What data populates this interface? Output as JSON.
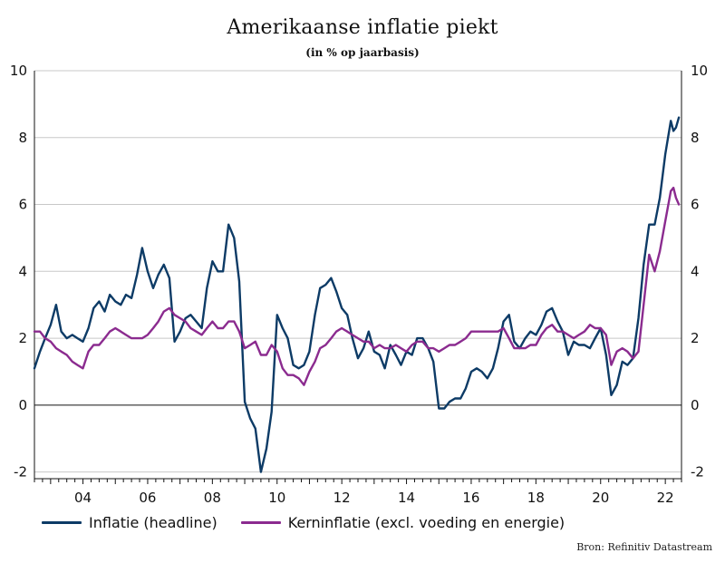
{
  "chart_data": {
    "type": "line",
    "title": "Amerikaanse inflatie piekt",
    "subtitle": "(in % op jaarbasis)",
    "source": "Bron: Refinitiv Datastream",
    "y_ticks": [
      -2,
      0,
      2,
      4,
      6,
      8,
      10
    ],
    "y_tick_labels": [
      "-2",
      "0",
      "2",
      "4",
      "6",
      "8",
      "10"
    ],
    "ylim": [
      -2.2,
      10
    ],
    "x_range": [
      2002.5,
      2022.5
    ],
    "x_tick_labels": [
      {
        "x": 2004,
        "label": "04"
      },
      {
        "x": 2006,
        "label": "06"
      },
      {
        "x": 2008,
        "label": "08"
      },
      {
        "x": 2010,
        "label": "10"
      },
      {
        "x": 2012,
        "label": "12"
      },
      {
        "x": 2014,
        "label": "14"
      },
      {
        "x": 2016,
        "label": "16"
      },
      {
        "x": 2018,
        "label": "18"
      },
      {
        "x": 2020,
        "label": "20"
      },
      {
        "x": 2022,
        "label": "22"
      }
    ],
    "grid": true,
    "zero_line": true,
    "dual_axis": true,
    "legend_position": "bottom",
    "series": [
      {
        "name": "Inflatie (headline)",
        "color": "#0d3b66",
        "points": [
          [
            2002.5,
            1.1
          ],
          [
            2002.67,
            1.6
          ],
          [
            2002.83,
            2.0
          ],
          [
            2003.0,
            2.4
          ],
          [
            2003.17,
            3.0
          ],
          [
            2003.33,
            2.2
          ],
          [
            2003.5,
            2.0
          ],
          [
            2003.67,
            2.1
          ],
          [
            2003.83,
            2.0
          ],
          [
            2004.0,
            1.9
          ],
          [
            2004.17,
            2.3
          ],
          [
            2004.33,
            2.9
          ],
          [
            2004.5,
            3.1
          ],
          [
            2004.67,
            2.8
          ],
          [
            2004.83,
            3.3
          ],
          [
            2005.0,
            3.1
          ],
          [
            2005.17,
            3.0
          ],
          [
            2005.33,
            3.3
          ],
          [
            2005.5,
            3.2
          ],
          [
            2005.67,
            3.9
          ],
          [
            2005.83,
            4.7
          ],
          [
            2006.0,
            4.0
          ],
          [
            2006.17,
            3.5
          ],
          [
            2006.33,
            3.9
          ],
          [
            2006.5,
            4.2
          ],
          [
            2006.67,
            3.8
          ],
          [
            2006.83,
            1.9
          ],
          [
            2007.0,
            2.2
          ],
          [
            2007.17,
            2.6
          ],
          [
            2007.33,
            2.7
          ],
          [
            2007.5,
            2.5
          ],
          [
            2007.67,
            2.3
          ],
          [
            2007.83,
            3.5
          ],
          [
            2008.0,
            4.3
          ],
          [
            2008.17,
            4.0
          ],
          [
            2008.33,
            4.0
          ],
          [
            2008.5,
            5.4
          ],
          [
            2008.67,
            5.0
          ],
          [
            2008.83,
            3.7
          ],
          [
            2009.0,
            0.1
          ],
          [
            2009.17,
            -0.4
          ],
          [
            2009.33,
            -0.7
          ],
          [
            2009.5,
            -2.0
          ],
          [
            2009.67,
            -1.3
          ],
          [
            2009.83,
            -0.2
          ],
          [
            2010.0,
            2.7
          ],
          [
            2010.17,
            2.3
          ],
          [
            2010.33,
            2.0
          ],
          [
            2010.5,
            1.2
          ],
          [
            2010.67,
            1.1
          ],
          [
            2010.83,
            1.2
          ],
          [
            2011.0,
            1.6
          ],
          [
            2011.17,
            2.7
          ],
          [
            2011.33,
            3.5
          ],
          [
            2011.5,
            3.6
          ],
          [
            2011.67,
            3.8
          ],
          [
            2011.83,
            3.4
          ],
          [
            2012.0,
            2.9
          ],
          [
            2012.17,
            2.7
          ],
          [
            2012.33,
            2.0
          ],
          [
            2012.5,
            1.4
          ],
          [
            2012.67,
            1.7
          ],
          [
            2012.83,
            2.2
          ],
          [
            2013.0,
            1.6
          ],
          [
            2013.17,
            1.5
          ],
          [
            2013.33,
            1.1
          ],
          [
            2013.5,
            1.8
          ],
          [
            2013.67,
            1.5
          ],
          [
            2013.83,
            1.2
          ],
          [
            2014.0,
            1.6
          ],
          [
            2014.17,
            1.5
          ],
          [
            2014.33,
            2.0
          ],
          [
            2014.5,
            2.0
          ],
          [
            2014.67,
            1.7
          ],
          [
            2014.83,
            1.3
          ],
          [
            2015.0,
            -0.1
          ],
          [
            2015.17,
            -0.1
          ],
          [
            2015.33,
            0.1
          ],
          [
            2015.5,
            0.2
          ],
          [
            2015.67,
            0.2
          ],
          [
            2015.83,
            0.5
          ],
          [
            2016.0,
            1.0
          ],
          [
            2016.17,
            1.1
          ],
          [
            2016.33,
            1.0
          ],
          [
            2016.5,
            0.8
          ],
          [
            2016.67,
            1.1
          ],
          [
            2016.83,
            1.7
          ],
          [
            2017.0,
            2.5
          ],
          [
            2017.17,
            2.7
          ],
          [
            2017.33,
            1.9
          ],
          [
            2017.5,
            1.7
          ],
          [
            2017.67,
            2.0
          ],
          [
            2017.83,
            2.2
          ],
          [
            2018.0,
            2.1
          ],
          [
            2018.17,
            2.4
          ],
          [
            2018.33,
            2.8
          ],
          [
            2018.5,
            2.9
          ],
          [
            2018.67,
            2.5
          ],
          [
            2018.83,
            2.2
          ],
          [
            2019.0,
            1.5
          ],
          [
            2019.17,
            1.9
          ],
          [
            2019.33,
            1.8
          ],
          [
            2019.5,
            1.8
          ],
          [
            2019.67,
            1.7
          ],
          [
            2019.83,
            2.0
          ],
          [
            2020.0,
            2.3
          ],
          [
            2020.17,
            1.5
          ],
          [
            2020.33,
            0.3
          ],
          [
            2020.5,
            0.6
          ],
          [
            2020.67,
            1.3
          ],
          [
            2020.83,
            1.2
          ],
          [
            2021.0,
            1.4
          ],
          [
            2021.17,
            2.6
          ],
          [
            2021.33,
            4.2
          ],
          [
            2021.5,
            5.4
          ],
          [
            2021.67,
            5.4
          ],
          [
            2021.83,
            6.2
          ],
          [
            2022.0,
            7.5
          ],
          [
            2022.17,
            8.5
          ],
          [
            2022.25,
            8.2
          ],
          [
            2022.33,
            8.3
          ],
          [
            2022.42,
            8.6
          ]
        ]
      },
      {
        "name": "Kerninflatie (excl. voeding en energie)",
        "color": "#8b2b8f",
        "points": [
          [
            2002.5,
            2.2
          ],
          [
            2002.67,
            2.2
          ],
          [
            2002.83,
            2.0
          ],
          [
            2003.0,
            1.9
          ],
          [
            2003.17,
            1.7
          ],
          [
            2003.33,
            1.6
          ],
          [
            2003.5,
            1.5
          ],
          [
            2003.67,
            1.3
          ],
          [
            2003.83,
            1.2
          ],
          [
            2004.0,
            1.1
          ],
          [
            2004.17,
            1.6
          ],
          [
            2004.33,
            1.8
          ],
          [
            2004.5,
            1.8
          ],
          [
            2004.67,
            2.0
          ],
          [
            2004.83,
            2.2
          ],
          [
            2005.0,
            2.3
          ],
          [
            2005.17,
            2.2
          ],
          [
            2005.33,
            2.1
          ],
          [
            2005.5,
            2.0
          ],
          [
            2005.67,
            2.0
          ],
          [
            2005.83,
            2.0
          ],
          [
            2006.0,
            2.1
          ],
          [
            2006.17,
            2.3
          ],
          [
            2006.33,
            2.5
          ],
          [
            2006.5,
            2.8
          ],
          [
            2006.67,
            2.9
          ],
          [
            2006.83,
            2.7
          ],
          [
            2007.0,
            2.6
          ],
          [
            2007.17,
            2.5
          ],
          [
            2007.33,
            2.3
          ],
          [
            2007.5,
            2.2
          ],
          [
            2007.67,
            2.1
          ],
          [
            2007.83,
            2.3
          ],
          [
            2008.0,
            2.5
          ],
          [
            2008.17,
            2.3
          ],
          [
            2008.33,
            2.3
          ],
          [
            2008.5,
            2.5
          ],
          [
            2008.67,
            2.5
          ],
          [
            2008.83,
            2.2
          ],
          [
            2009.0,
            1.7
          ],
          [
            2009.17,
            1.8
          ],
          [
            2009.33,
            1.9
          ],
          [
            2009.5,
            1.5
          ],
          [
            2009.67,
            1.5
          ],
          [
            2009.83,
            1.8
          ],
          [
            2010.0,
            1.6
          ],
          [
            2010.17,
            1.1
          ],
          [
            2010.33,
            0.9
          ],
          [
            2010.5,
            0.9
          ],
          [
            2010.67,
            0.8
          ],
          [
            2010.83,
            0.6
          ],
          [
            2011.0,
            1.0
          ],
          [
            2011.17,
            1.3
          ],
          [
            2011.33,
            1.7
          ],
          [
            2011.5,
            1.8
          ],
          [
            2011.67,
            2.0
          ],
          [
            2011.83,
            2.2
          ],
          [
            2012.0,
            2.3
          ],
          [
            2012.17,
            2.2
          ],
          [
            2012.33,
            2.1
          ],
          [
            2012.5,
            2.0
          ],
          [
            2012.67,
            1.9
          ],
          [
            2012.83,
            1.9
          ],
          [
            2013.0,
            1.7
          ],
          [
            2013.17,
            1.8
          ],
          [
            2013.33,
            1.7
          ],
          [
            2013.5,
            1.7
          ],
          [
            2013.67,
            1.8
          ],
          [
            2013.83,
            1.7
          ],
          [
            2014.0,
            1.6
          ],
          [
            2014.17,
            1.8
          ],
          [
            2014.33,
            1.9
          ],
          [
            2014.5,
            1.9
          ],
          [
            2014.67,
            1.7
          ],
          [
            2014.83,
            1.7
          ],
          [
            2015.0,
            1.6
          ],
          [
            2015.17,
            1.7
          ],
          [
            2015.33,
            1.8
          ],
          [
            2015.5,
            1.8
          ],
          [
            2015.67,
            1.9
          ],
          [
            2015.83,
            2.0
          ],
          [
            2016.0,
            2.2
          ],
          [
            2016.17,
            2.2
          ],
          [
            2016.33,
            2.2
          ],
          [
            2016.5,
            2.2
          ],
          [
            2016.67,
            2.2
          ],
          [
            2016.83,
            2.2
          ],
          [
            2017.0,
            2.3
          ],
          [
            2017.17,
            2.0
          ],
          [
            2017.33,
            1.7
          ],
          [
            2017.5,
            1.7
          ],
          [
            2017.67,
            1.7
          ],
          [
            2017.83,
            1.8
          ],
          [
            2018.0,
            1.8
          ],
          [
            2018.17,
            2.1
          ],
          [
            2018.33,
            2.3
          ],
          [
            2018.5,
            2.4
          ],
          [
            2018.67,
            2.2
          ],
          [
            2018.83,
            2.2
          ],
          [
            2019.0,
            2.1
          ],
          [
            2019.17,
            2.0
          ],
          [
            2019.33,
            2.1
          ],
          [
            2019.5,
            2.2
          ],
          [
            2019.67,
            2.4
          ],
          [
            2019.83,
            2.3
          ],
          [
            2020.0,
            2.3
          ],
          [
            2020.17,
            2.1
          ],
          [
            2020.33,
            1.2
          ],
          [
            2020.5,
            1.6
          ],
          [
            2020.67,
            1.7
          ],
          [
            2020.83,
            1.6
          ],
          [
            2021.0,
            1.4
          ],
          [
            2021.17,
            1.6
          ],
          [
            2021.33,
            3.0
          ],
          [
            2021.5,
            4.5
          ],
          [
            2021.67,
            4.0
          ],
          [
            2021.83,
            4.6
          ],
          [
            2022.0,
            5.5
          ],
          [
            2022.17,
            6.4
          ],
          [
            2022.25,
            6.5
          ],
          [
            2022.33,
            6.2
          ],
          [
            2022.42,
            6.0
          ]
        ]
      }
    ]
  }
}
